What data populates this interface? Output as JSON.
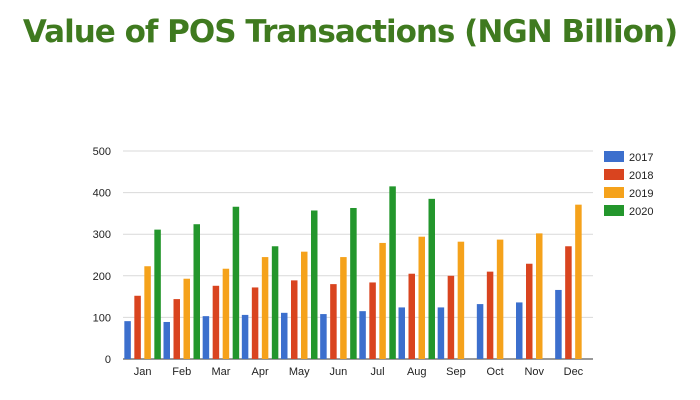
{
  "chart_data": {
    "type": "bar",
    "title": "Value of POS Transactions (NGN Billion)",
    "categories": [
      "Jan",
      "Feb",
      "Mar",
      "Apr",
      "May",
      "Jun",
      "Jul",
      "Aug",
      "Sep",
      "Oct",
      "Nov",
      "Dec"
    ],
    "series": [
      {
        "name": "2017",
        "color": "#3c6fcd",
        "values": [
          91,
          89,
          103,
          106,
          111,
          108,
          115,
          124,
          124,
          132,
          136,
          166
        ]
      },
      {
        "name": "2018",
        "color": "#d9441f",
        "values": [
          152,
          144,
          176,
          172,
          189,
          180,
          184,
          205,
          200,
          210,
          229,
          271
        ]
      },
      {
        "name": "2019",
        "color": "#f5a21b",
        "values": [
          223,
          193,
          217,
          245,
          258,
          245,
          279,
          294,
          282,
          287,
          302,
          371
        ]
      },
      {
        "name": "2020",
        "color": "#23962c",
        "values": [
          311,
          324,
          366,
          271,
          357,
          363,
          415,
          385,
          null,
          null,
          null,
          null
        ]
      }
    ],
    "ylim": [
      0,
      500
    ],
    "yticks": [
      0,
      100,
      200,
      300,
      400,
      500
    ],
    "grid": true,
    "legend": "right",
    "title_color": "#3f7a1f"
  }
}
